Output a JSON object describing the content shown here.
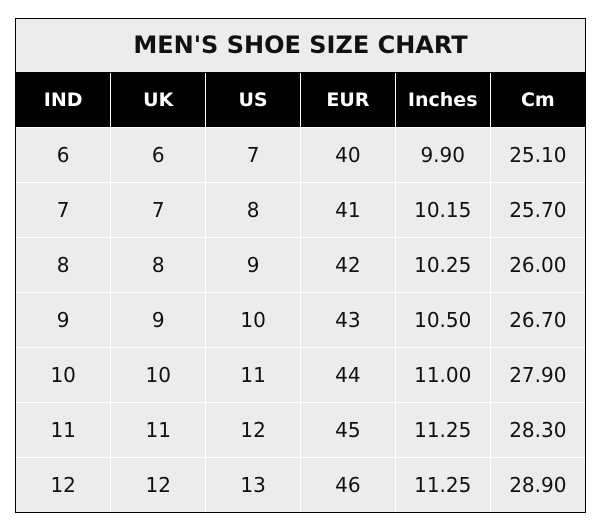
{
  "title": "MEN'S SHOE SIZE CHART",
  "columns": [
    "IND",
    "UK",
    "US",
    "EUR",
    "Inches",
    "Cm"
  ],
  "rows": [
    [
      "6",
      "6",
      "7",
      "40",
      "9.90",
      "25.10"
    ],
    [
      "7",
      "7",
      "8",
      "41",
      "10.15",
      "25.70"
    ],
    [
      "8",
      "8",
      "9",
      "42",
      "10.25",
      "26.00"
    ],
    [
      "9",
      "9",
      "10",
      "43",
      "10.50",
      "26.70"
    ],
    [
      "10",
      "10",
      "11",
      "44",
      "11.00",
      "27.90"
    ],
    [
      "11",
      "11",
      "12",
      "45",
      "11.25",
      "28.30"
    ],
    [
      "12",
      "12",
      "13",
      "46",
      "11.25",
      "28.90"
    ]
  ],
  "colors": {
    "header_bg": "#000000",
    "header_text": "#ffffff",
    "body_bg": "#ececec"
  }
}
